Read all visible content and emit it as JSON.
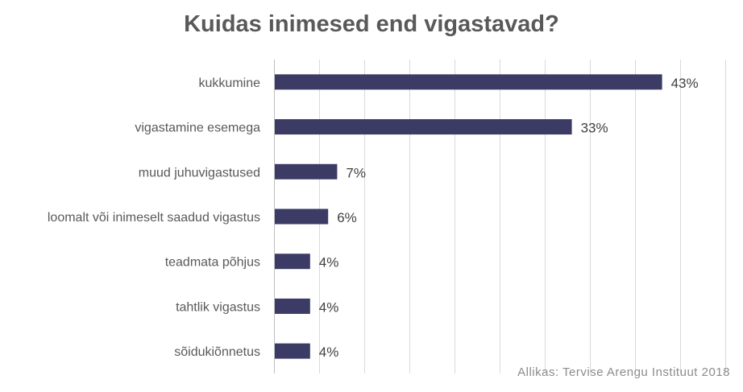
{
  "chart_data": {
    "type": "bar",
    "orientation": "horizontal",
    "title": "Kuidas inimesed end vigastavad?",
    "categories": [
      "kukkumine",
      "vigastamine esemega",
      "muud juhuvigastused",
      "loomalt või inimeselt saadud vigastus",
      "teadmata põhjus",
      "tahtlik vigastus",
      "sõidukiõnnetus"
    ],
    "values": [
      43,
      33,
      7,
      6,
      4,
      4,
      4
    ],
    "value_labels": [
      "43%",
      "33%",
      "7%",
      "6%",
      "4%",
      "4%",
      "4%"
    ],
    "xlim": [
      0,
      50
    ],
    "unit": "%",
    "grid": true,
    "bar_color": "#3b3b66",
    "grid_color": "#d9d9d9"
  },
  "source": "Allikas: Tervise Arengu Instituut 2018"
}
